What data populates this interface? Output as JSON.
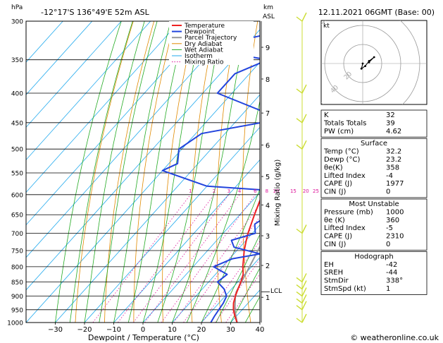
{
  "header": {
    "location": "-12°17'S  136°49'E  52m  ASL",
    "datetime": "12.11.2021  06GMT  (Base: 00)",
    "hpa_label": "hPa",
    "km_label": "km",
    "asl_label": "ASL"
  },
  "footer": {
    "copyright": "© weatheronline.co.uk"
  },
  "chart_data": {
    "type": "line",
    "subtype": "skew-t log-p",
    "xlabel": "Dewpoint / Temperature (°C)",
    "ylabel_right": "Mixing Ratio (g/kg)",
    "xlim": [
      -40,
      40
    ],
    "ylim": [
      1000,
      300
    ],
    "x_ticks": [
      -30,
      -20,
      -10,
      0,
      10,
      20,
      30,
      40
    ],
    "pressure_ticks": [
      300,
      350,
      400,
      450,
      500,
      550,
      600,
      650,
      700,
      750,
      800,
      850,
      900,
      950,
      1000
    ],
    "km_ticks": [
      {
        "km": "1",
        "p": 904
      },
      {
        "km": "2",
        "p": 796
      },
      {
        "km": "3",
        "p": 707
      },
      {
        "km": "4",
        "p": 625
      },
      {
        "km": "5",
        "p": 558
      },
      {
        "km": "6",
        "p": 492
      },
      {
        "km": "7",
        "p": 433
      },
      {
        "km": "8",
        "p": 378
      },
      {
        "km": "9",
        "p": 333
      }
    ],
    "lcl_label": "LCL",
    "lcl_pressure": 885,
    "mixing_ratio_labels": [
      "1",
      "2",
      "3",
      "4",
      "6",
      "8",
      "10",
      "15",
      "20",
      "25"
    ],
    "legend": [
      "Temperature",
      "Dewpoint",
      "Parcel Trajectory",
      "Dry Adiabat",
      "Wet Adiabat",
      "Isotherm",
      "Mixing Ratio"
    ],
    "colors": {
      "temperature": "#ee2222",
      "dewpoint": "#2244dd",
      "parcel": "#999999",
      "dry_adiabat": "#e08a00",
      "wet_adiabat": "#22aa22",
      "isotherm": "#22aaee",
      "mixing_ratio": "#dd1199",
      "wind": "#ccdd33"
    },
    "series": [
      {
        "name": "Temperature",
        "points": [
          {
            "p": 1000,
            "t": 32.2
          },
          {
            "p": 975,
            "t": 29.5
          },
          {
            "p": 950,
            "t": 27.0
          },
          {
            "p": 925,
            "t": 25.0
          },
          {
            "p": 900,
            "t": 23.5
          },
          {
            "p": 875,
            "t": 22.2
          },
          {
            "p": 850,
            "t": 21.0
          },
          {
            "p": 825,
            "t": 19.5
          },
          {
            "p": 800,
            "t": 17.0
          },
          {
            "p": 775,
            "t": 14.8
          },
          {
            "p": 750,
            "t": 12.5
          },
          {
            "p": 725,
            "t": 10.5
          },
          {
            "p": 700,
            "t": 8.5
          },
          {
            "p": 650,
            "t": 5.0
          },
          {
            "p": 600,
            "t": 1.5
          },
          {
            "p": 550,
            "t": -3.0
          },
          {
            "p": 500,
            "t": -7.5
          },
          {
            "p": 450,
            "t": -13.0
          },
          {
            "p": 425,
            "t": -16.5
          },
          {
            "p": 400,
            "t": -20.5
          },
          {
            "p": 375,
            "t": -25.0
          },
          {
            "p": 370,
            "t": -26.0
          }
        ]
      },
      {
        "name": "Dewpoint",
        "points": [
          {
            "p": 1000,
            "t": 23.2
          },
          {
            "p": 975,
            "t": 22.5
          },
          {
            "p": 950,
            "t": 22.0
          },
          {
            "p": 925,
            "t": 21.5
          },
          {
            "p": 900,
            "t": 20.5
          },
          {
            "p": 875,
            "t": 17.5
          },
          {
            "p": 850,
            "t": 13.0
          },
          {
            "p": 825,
            "t": 14.0
          },
          {
            "p": 800,
            "t": 7.0
          },
          {
            "p": 775,
            "t": 11.0
          },
          {
            "p": 760,
            "t": 19.0
          },
          {
            "p": 740,
            "t": 8.0
          },
          {
            "p": 720,
            "t": 5.0
          },
          {
            "p": 700,
            "t": 11.0
          },
          {
            "p": 675,
            "t": 8.0
          },
          {
            "p": 650,
            "t": 10.0
          },
          {
            "p": 625,
            "t": 6.0
          },
          {
            "p": 610,
            "t": 5.0
          },
          {
            "p": 600,
            "t": 3.0
          },
          {
            "p": 590,
            "t": 3.0
          },
          {
            "p": 580,
            "t": -20.0
          },
          {
            "p": 545,
            "t": -40.0
          },
          {
            "p": 530,
            "t": -37.0
          },
          {
            "p": 500,
            "t": -41.0
          },
          {
            "p": 470,
            "t": -38.0
          },
          {
            "p": 450,
            "t": -21.0
          },
          {
            "p": 430,
            "t": -24.0
          },
          {
            "p": 400,
            "t": -45.0
          },
          {
            "p": 370,
            "t": -45.0
          },
          {
            "p": 350,
            "t": -38.0
          },
          {
            "p": 335,
            "t": -64.0
          },
          {
            "p": 315,
            "t": -45.0
          },
          {
            "p": 300,
            "t": -48.0
          }
        ]
      },
      {
        "name": "Parcel Trajectory",
        "points": [
          {
            "p": 1000,
            "t": 32.2
          },
          {
            "p": 950,
            "t": 27.5
          },
          {
            "p": 900,
            "t": 23.5
          },
          {
            "p": 885,
            "t": 22.5
          },
          {
            "p": 850,
            "t": 21.2
          },
          {
            "p": 800,
            "t": 19.3
          },
          {
            "p": 750,
            "t": 17.2
          },
          {
            "p": 700,
            "t": 14.8
          },
          {
            "p": 650,
            "t": 12.2
          },
          {
            "p": 600,
            "t": 9.2
          },
          {
            "p": 550,
            "t": 5.7
          },
          {
            "p": 500,
            "t": 1.5
          },
          {
            "p": 450,
            "t": -3.5
          },
          {
            "p": 400,
            "t": -9.8
          },
          {
            "p": 350,
            "t": -17.5
          },
          {
            "p": 300,
            "t": -28.0
          }
        ]
      }
    ],
    "wind_barbs_pressures": [
      1000,
      950,
      925,
      900,
      875,
      850,
      700,
      500,
      450,
      400,
      300
    ]
  },
  "indices": {
    "rows": [
      {
        "label": "K",
        "value": "32"
      },
      {
        "label": "Totals Totals",
        "value": "39"
      },
      {
        "label": "PW (cm)",
        "value": "4.62"
      }
    ]
  },
  "surface": {
    "title": "Surface",
    "rows": [
      {
        "label": "Temp (°C)",
        "value": "32.2"
      },
      {
        "label": "Dewp (°C)",
        "value": "23.2"
      },
      {
        "label": "θe(K)",
        "value": "358"
      },
      {
        "label": "Lifted Index",
        "value": "-4"
      },
      {
        "label": "CAPE (J)",
        "value": "1977"
      },
      {
        "label": "CIN (J)",
        "value": "0"
      }
    ]
  },
  "most_unstable": {
    "title": "Most Unstable",
    "rows": [
      {
        "label": "Pressure (mb)",
        "value": "1000"
      },
      {
        "label": "θe (K)",
        "value": "360"
      },
      {
        "label": "Lifted Index",
        "value": "-5"
      },
      {
        "label": "CAPE (J)",
        "value": "2310"
      },
      {
        "label": "CIN (J)",
        "value": "0"
      }
    ]
  },
  "hodograph_table": {
    "title": "Hodograph",
    "rows": [
      {
        "label": "EH",
        "value": "-42"
      },
      {
        "label": "SREH",
        "value": "-44"
      },
      {
        "label": "StmDir",
        "value": "338°"
      },
      {
        "label": "StmSpd (kt)",
        "value": "1"
      }
    ]
  },
  "hodograph": {
    "unit_label": "kt",
    "ring_labels": [
      "20",
      "40"
    ],
    "trace_kt": [
      [
        0,
        0
      ],
      [
        -1,
        4
      ],
      [
        2,
        2
      ],
      [
        5,
        -2
      ],
      [
        9,
        -5
      ],
      [
        5,
        -1
      ]
    ]
  }
}
